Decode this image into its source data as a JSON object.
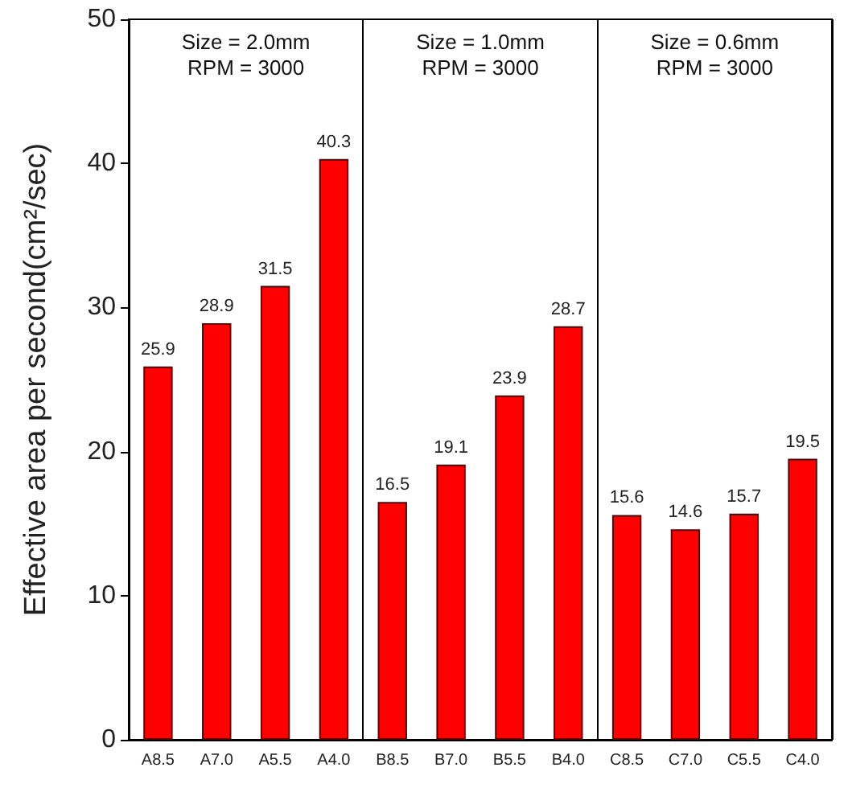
{
  "chart_data": {
    "type": "bar",
    "ylabel": "Effective area per second(cm²/sec)",
    "categories": [
      "A8.5",
      "A7.0",
      "A5.5",
      "A4.0",
      "B8.5",
      "B7.0",
      "B5.5",
      "B4.0",
      "C8.5",
      "C7.0",
      "C5.5",
      "C4.0"
    ],
    "values": [
      25.9,
      28.9,
      31.5,
      40.3,
      16.5,
      19.1,
      23.9,
      28.7,
      15.6,
      14.6,
      15.7,
      19.5
    ],
    "color": "#ff0000",
    "data_labels": true,
    "ylim": [
      0,
      50
    ],
    "yticks": [
      0,
      10,
      20,
      30,
      40,
      50
    ],
    "grid": false,
    "annotations": [
      "Size = 2.0mm\nRPM = 3000",
      "Size = 1.0mm\nRPM = 3000",
      "Size = 0.6mm\nRPM = 3000"
    ]
  }
}
